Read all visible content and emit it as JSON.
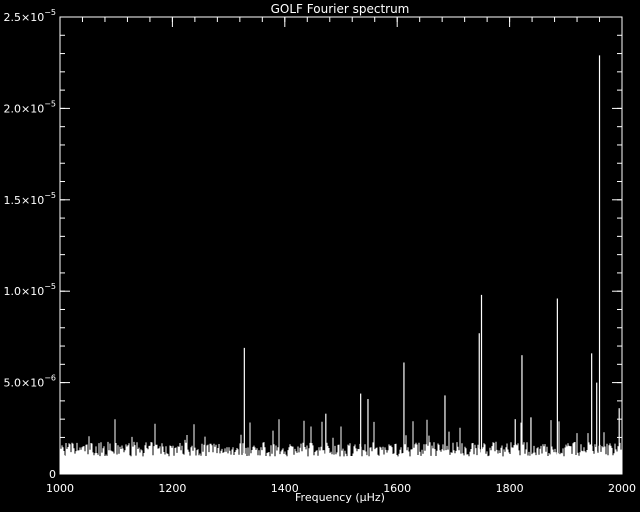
{
  "chart_data": {
    "type": "line",
    "title": "GOLF Fourier spectrum",
    "xlabel": "Frequency (μHz)",
    "ylabel": "",
    "xlim": [
      1000,
      2000
    ],
    "ylim": [
      0,
      2.5e-05
    ],
    "x_ticks": [
      1000,
      1200,
      1400,
      1600,
      1800,
      2000
    ],
    "x_tick_labels": [
      "1000",
      "1200",
      "1400",
      "1600",
      "1800",
      "2000"
    ],
    "y_ticks": [
      0,
      5e-06,
      1e-05,
      1.5e-05,
      2e-05,
      2.5e-05
    ],
    "y_tick_labels": [
      {
        "mant": "0",
        "exp": ""
      },
      {
        "mant": "5.0×10",
        "exp": "−6"
      },
      {
        "mant": "1.0×10",
        "exp": "−5"
      },
      {
        "mant": "1.5×10",
        "exp": "−5"
      },
      {
        "mant": "2.0×10",
        "exp": "−5"
      },
      {
        "mant": "2.5×10",
        "exp": "−5"
      }
    ],
    "noise_level": 1.6e-06,
    "noise_max": 3e-06,
    "peaks": [
      {
        "x": 1328,
        "y": 6.9e-06
      },
      {
        "x": 1473,
        "y": 3.3e-06
      },
      {
        "x": 1535,
        "y": 4.4e-06
      },
      {
        "x": 1548,
        "y": 4.1e-06
      },
      {
        "x": 1612,
        "y": 6.1e-06
      },
      {
        "x": 1685,
        "y": 4.3e-06
      },
      {
        "x": 1746,
        "y": 7.7e-06
      },
      {
        "x": 1750,
        "y": 9.8e-06
      },
      {
        "x": 1810,
        "y": 3e-06
      },
      {
        "x": 1822,
        "y": 6.5e-06
      },
      {
        "x": 1838,
        "y": 3.1e-06
      },
      {
        "x": 1885,
        "y": 9.6e-06
      },
      {
        "x": 1946,
        "y": 6.6e-06
      },
      {
        "x": 1955,
        "y": 5e-06
      },
      {
        "x": 1960,
        "y": 2.29e-05
      },
      {
        "x": 1995,
        "y": 3.6e-06
      }
    ],
    "colors": {
      "background": "#000000",
      "foreground": "#ffffff"
    },
    "grid": false
  }
}
